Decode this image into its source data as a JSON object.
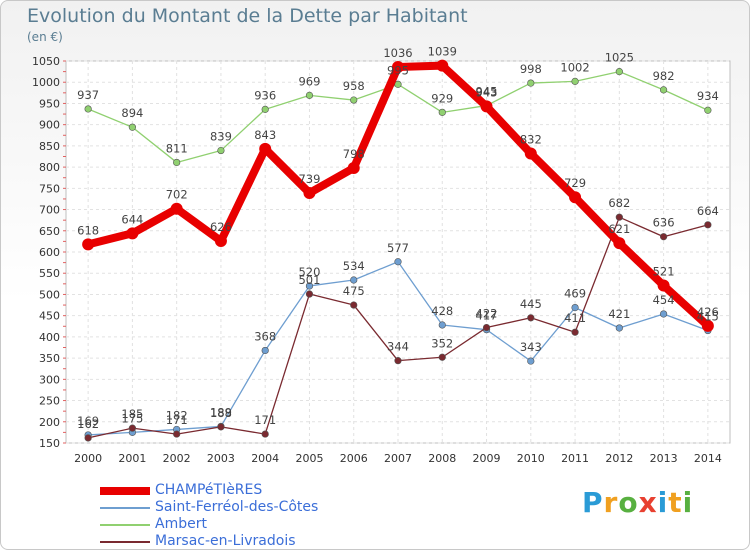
{
  "page": {
    "title": "Evolution du Montant de la Dette par Habitant",
    "unit_label": "(en €)",
    "logo": {
      "letters": [
        "P",
        "r",
        "o",
        "x",
        "i",
        "t",
        "i"
      ],
      "colors": [
        "#2a9bd6",
        "#f0a020",
        "#58b040",
        "#e84030",
        "#2a9bd6",
        "#f0a020",
        "#58b040"
      ]
    }
  },
  "chart_data": {
    "type": "line",
    "x": [
      2000,
      2001,
      2002,
      2003,
      2004,
      2005,
      2006,
      2007,
      2008,
      2009,
      2010,
      2011,
      2012,
      2013,
      2014
    ],
    "ylim": [
      150,
      1050
    ],
    "yticks": [
      150,
      200,
      250,
      300,
      350,
      400,
      450,
      500,
      550,
      600,
      650,
      700,
      750,
      800,
      850,
      900,
      950,
      1000,
      1050
    ],
    "grid": true,
    "legend_position": "bottom-left",
    "series": [
      {
        "name": "CHAMPéTIèRES",
        "color": "#e80000",
        "values": [
          618,
          644,
          702,
          626,
          843,
          739,
          798,
          1036,
          1039,
          943,
          832,
          729,
          621,
          521,
          426
        ],
        "labels": [
          "618",
          "644",
          "702",
          "626",
          "843",
          "739",
          "798",
          "1036",
          "1039",
          "943",
          "832",
          "729",
          "621",
          "521",
          "426"
        ]
      },
      {
        "name": "Saint-Ferréol-des-Côtes",
        "color": "#6e9ed0",
        "values": [
          169,
          175,
          182,
          189,
          368,
          520,
          534,
          577,
          428,
          417,
          343,
          469,
          421,
          454,
          415
        ],
        "labels": [
          "169",
          "175",
          "182",
          "189",
          "368",
          "520",
          "534",
          "577",
          "428",
          "417",
          "343",
          "469",
          "421",
          "454",
          "415"
        ]
      },
      {
        "name": "Ambert",
        "color": "#90d070",
        "values": [
          937,
          894,
          811,
          839,
          936,
          969,
          958,
          995,
          929,
          945,
          998,
          1002,
          1025,
          982,
          934
        ],
        "labels": [
          "937",
          "894",
          "811",
          "839",
          "936",
          "969",
          "958",
          "995",
          "929",
          "945",
          "998",
          "1002",
          "1025",
          "982",
          "934"
        ]
      },
      {
        "name": "Marsac-en-Livradois",
        "color": "#7a2a30",
        "values": [
          162,
          185,
          171,
          188,
          171,
          501,
          475,
          344,
          352,
          422,
          445,
          411,
          682,
          636,
          664
        ],
        "labels": [
          "162",
          "185",
          "171",
          "188",
          "171",
          "501",
          "475",
          "344",
          "352",
          "422",
          "445",
          "411",
          "682",
          "636",
          "664"
        ]
      }
    ]
  }
}
